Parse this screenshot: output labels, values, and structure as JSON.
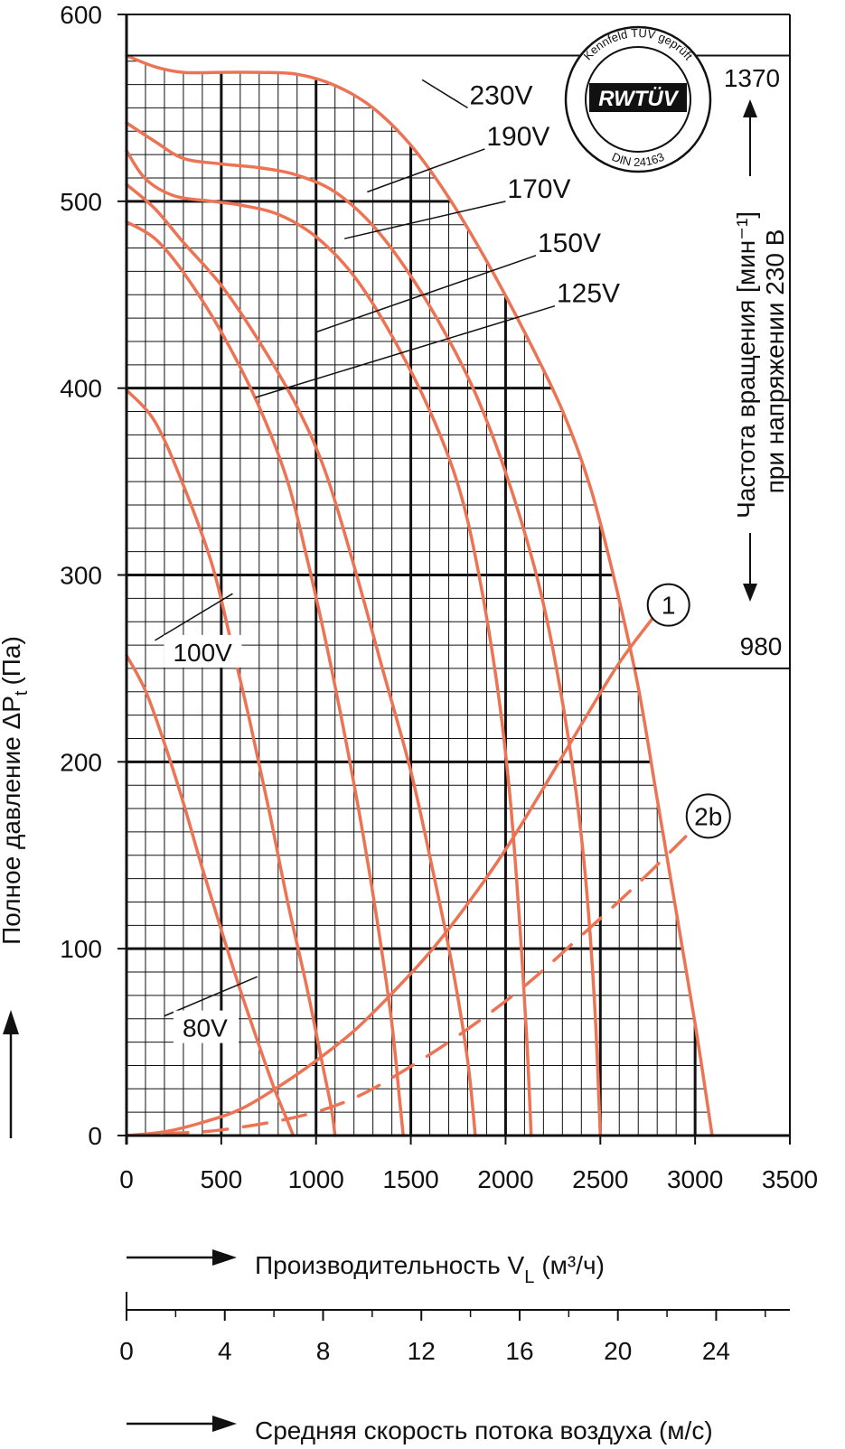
{
  "chart_data": {
    "type": "line",
    "ylabel": "Полное давление ΔP",
    "ylabel_sub": "t",
    "ylabel_unit": "(Па)",
    "xlabel": "Производительность V",
    "xlabel_sub": "L",
    "xlabel_unit": "(м³/ч)",
    "xlim": [
      0,
      3500
    ],
    "ylim": [
      0,
      600
    ],
    "x_ticks": [
      "0",
      "500",
      "1000",
      "1500",
      "2000",
      "2500",
      "3000",
      "3500"
    ],
    "y_ticks": [
      "0",
      "100",
      "200",
      "300",
      "400",
      "500",
      "600"
    ],
    "grid": true,
    "velocity_axis": {
      "label": "Средняя скорость потока воздуха (м/с)",
      "ticks": [
        "0",
        "4",
        "8",
        "12",
        "16",
        "20",
        "24"
      ],
      "range": [
        0,
        27
      ]
    },
    "rpm_axis": {
      "label_line1": "Частота вращения [мин⁻¹]",
      "label_line2": "при напряжении 230 В",
      "max": "1370",
      "min": "980",
      "max_pressure": 578,
      "min_pressure": 250
    },
    "badge": {
      "top_text": "Kennfeld TÜV geprüft",
      "logo": "RWTÜV",
      "bottom_text": "DIN 24163"
    },
    "series": [
      {
        "name": "230V",
        "points": [
          [
            0,
            578
          ],
          [
            150,
            572
          ],
          [
            300,
            569
          ],
          [
            500,
            569
          ],
          [
            700,
            569
          ],
          [
            900,
            568
          ],
          [
            1100,
            562
          ],
          [
            1300,
            550
          ],
          [
            1500,
            530
          ],
          [
            1700,
            502
          ],
          [
            1900,
            468
          ],
          [
            2100,
            430
          ],
          [
            2300,
            388
          ],
          [
            2450,
            346
          ],
          [
            2580,
            295
          ],
          [
            2700,
            240
          ],
          [
            2800,
            180
          ],
          [
            2900,
            120
          ],
          [
            3000,
            60
          ],
          [
            3090,
            0
          ]
        ]
      },
      {
        "name": "190V",
        "points": [
          [
            0,
            542
          ],
          [
            150,
            532
          ],
          [
            300,
            523
          ],
          [
            500,
            520
          ],
          [
            700,
            518
          ],
          [
            900,
            514
          ],
          [
            1100,
            505
          ],
          [
            1300,
            487
          ],
          [
            1500,
            460
          ],
          [
            1700,
            426
          ],
          [
            1850,
            395
          ],
          [
            2000,
            355
          ],
          [
            2150,
            305
          ],
          [
            2250,
            260
          ],
          [
            2350,
            200
          ],
          [
            2420,
            140
          ],
          [
            2470,
            70
          ],
          [
            2500,
            0
          ]
        ]
      },
      {
        "name": "170V",
        "points": [
          [
            0,
            527
          ],
          [
            100,
            512
          ],
          [
            250,
            503
          ],
          [
            450,
            500
          ],
          [
            600,
            498
          ],
          [
            800,
            493
          ],
          [
            1000,
            481
          ],
          [
            1200,
            460
          ],
          [
            1400,
            428
          ],
          [
            1600,
            388
          ],
          [
            1750,
            348
          ],
          [
            1850,
            305
          ],
          [
            1950,
            245
          ],
          [
            2020,
            185
          ],
          [
            2070,
            120
          ],
          [
            2110,
            55
          ],
          [
            2135,
            0
          ]
        ]
      },
      {
        "name": "150V",
        "points": [
          [
            0,
            509
          ],
          [
            150,
            496
          ],
          [
            300,
            478
          ],
          [
            500,
            455
          ],
          [
            700,
            425
          ],
          [
            900,
            390
          ],
          [
            1050,
            355
          ],
          [
            1200,
            305
          ],
          [
            1350,
            250
          ],
          [
            1500,
            195
          ],
          [
            1620,
            140
          ],
          [
            1720,
            90
          ],
          [
            1800,
            40
          ],
          [
            1840,
            0
          ]
        ]
      },
      {
        "name": "125V",
        "points": [
          [
            0,
            489
          ],
          [
            150,
            480
          ],
          [
            300,
            462
          ],
          [
            500,
            430
          ],
          [
            700,
            390
          ],
          [
            850,
            350
          ],
          [
            950,
            310
          ],
          [
            1050,
            265
          ],
          [
            1150,
            215
          ],
          [
            1250,
            160
          ],
          [
            1330,
            110
          ],
          [
            1400,
            60
          ],
          [
            1440,
            20
          ],
          [
            1460,
            0
          ]
        ]
      },
      {
        "name": "100V",
        "points": [
          [
            0,
            399
          ],
          [
            150,
            382
          ],
          [
            300,
            348
          ],
          [
            450,
            306
          ],
          [
            550,
            265
          ],
          [
            650,
            222
          ],
          [
            750,
            175
          ],
          [
            850,
            125
          ],
          [
            950,
            80
          ],
          [
            1030,
            40
          ],
          [
            1080,
            15
          ],
          [
            1100,
            0
          ]
        ]
      },
      {
        "name": "80V",
        "points": [
          [
            0,
            257
          ],
          [
            100,
            238
          ],
          [
            200,
            210
          ],
          [
            300,
            178
          ],
          [
            400,
            143
          ],
          [
            500,
            110
          ],
          [
            600,
            78
          ],
          [
            700,
            48
          ],
          [
            780,
            25
          ],
          [
            840,
            10
          ],
          [
            880,
            0
          ]
        ]
      },
      {
        "name": "1",
        "dashed": false,
        "points": [
          [
            0,
            0
          ],
          [
            200,
            2
          ],
          [
            400,
            7
          ],
          [
            600,
            14
          ],
          [
            800,
            26
          ],
          [
            1000,
            40
          ],
          [
            1200,
            56
          ],
          [
            1400,
            76
          ],
          [
            1600,
            98
          ],
          [
            1800,
            124
          ],
          [
            2000,
            153
          ],
          [
            2200,
            186
          ],
          [
            2400,
            220
          ],
          [
            2600,
            253
          ],
          [
            2800,
            280
          ]
        ]
      },
      {
        "name": "2b",
        "dashed": true,
        "points": [
          [
            200,
            1
          ],
          [
            500,
            3
          ],
          [
            900,
            10
          ],
          [
            1200,
            20
          ],
          [
            1500,
            37
          ],
          [
            1800,
            57
          ],
          [
            2100,
            80
          ],
          [
            2400,
            107
          ],
          [
            2700,
            135
          ],
          [
            2950,
            160
          ]
        ]
      }
    ],
    "annotations": [
      {
        "text": "230V",
        "x": 1800,
        "y": 550,
        "target": [
          1560,
          565
        ]
      },
      {
        "text": "190V",
        "x": 1890,
        "y": 528,
        "target": [
          1270,
          505
        ]
      },
      {
        "text": "170V",
        "x": 2000,
        "y": 500,
        "target": [
          1150,
          480
        ]
      },
      {
        "text": "150V",
        "x": 2160,
        "y": 471,
        "target": [
          1000,
          430
        ]
      },
      {
        "text": "125V",
        "x": 2260,
        "y": 444,
        "target": [
          680,
          395
        ]
      },
      {
        "text": "100V",
        "x": 150,
        "y": 265,
        "target": [
          560,
          290
        ]
      },
      {
        "text": "80V",
        "x": 200,
        "y": 64,
        "target": [
          690,
          85
        ]
      }
    ],
    "markers": [
      {
        "text": "1",
        "x": 2850,
        "y": 283
      },
      {
        "text": "2b",
        "x": 3060,
        "y": 170
      }
    ]
  },
  "colors": {
    "curve": "#ec7455",
    "grid": "#111111"
  }
}
